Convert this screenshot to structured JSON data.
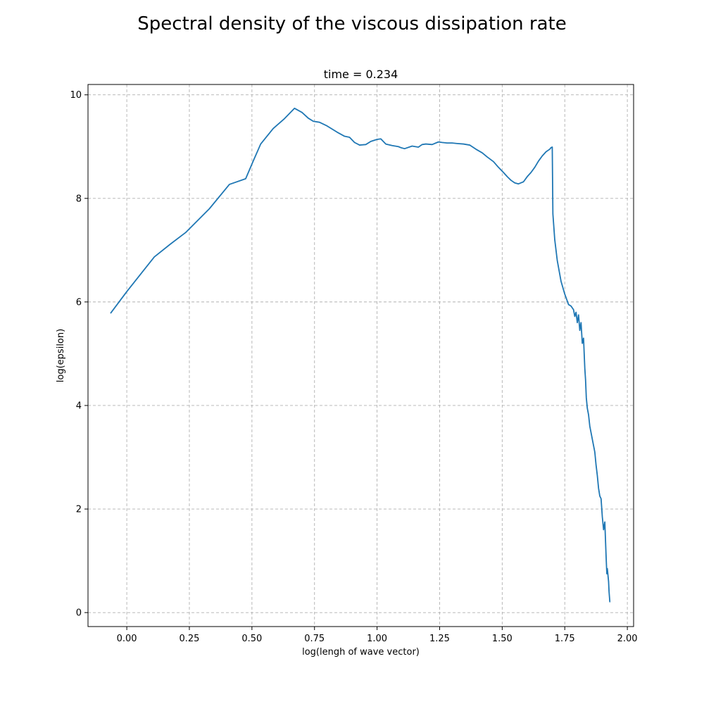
{
  "chart_data": {
    "type": "line",
    "title": "Spectral density of the viscous dissipation rate",
    "subtitle": "time = 0.234",
    "xlabel": "log(lengh of wave vector)",
    "ylabel": "log(epsilon)",
    "xlim": [
      -0.155,
      2.025
    ],
    "ylim": [
      -0.27,
      10.2
    ],
    "xticks": [
      0.0,
      0.25,
      0.5,
      0.75,
      1.0,
      1.25,
      1.5,
      1.75,
      2.0
    ],
    "xtick_labels": [
      "0.00",
      "0.25",
      "0.50",
      "0.75",
      "1.00",
      "1.25",
      "1.50",
      "1.75",
      "2.00"
    ],
    "yticks": [
      0,
      2,
      4,
      6,
      8,
      10
    ],
    "ytick_labels": [
      "0",
      "2",
      "4",
      "6",
      "8",
      "10"
    ],
    "grid": true,
    "line_color": "#1f77b4",
    "series": [
      {
        "x": [
          -0.065,
          0.0,
          0.11,
          0.175,
          0.235,
          0.33,
          0.41,
          0.475,
          0.505,
          0.535,
          0.585,
          0.63,
          0.67,
          0.7,
          0.725,
          0.745,
          0.77,
          0.8,
          0.84,
          0.87,
          0.89,
          0.91,
          0.93,
          0.955,
          0.975,
          1.0,
          1.015,
          1.035,
          1.06,
          1.085,
          1.095,
          1.11,
          1.14,
          1.165,
          1.18,
          1.195,
          1.22,
          1.245,
          1.26,
          1.28,
          1.3,
          1.32,
          1.345,
          1.37,
          1.395,
          1.42,
          1.44,
          1.465,
          1.485,
          1.505,
          1.52,
          1.535,
          1.55,
          1.565,
          1.575,
          1.585,
          1.6,
          1.615,
          1.63,
          1.645,
          1.66,
          1.675,
          1.69,
          1.695,
          1.7,
          1.7025,
          1.71,
          1.72,
          1.735,
          1.75,
          1.765,
          1.775,
          1.785,
          1.79,
          1.795,
          1.8,
          1.805,
          1.81,
          1.815,
          1.82,
          1.825,
          1.83,
          1.833,
          1.836,
          1.84,
          1.845,
          1.85,
          1.86,
          1.87,
          1.875,
          1.88,
          1.885,
          1.89,
          1.895,
          1.9,
          1.905,
          1.91,
          1.915,
          1.918,
          1.92,
          1.925,
          1.927,
          1.93,
          1.932
        ],
        "y": [
          5.78,
          6.2,
          6.87,
          7.12,
          7.34,
          7.8,
          8.27,
          8.38,
          8.72,
          9.05,
          9.35,
          9.54,
          9.74,
          9.66,
          9.55,
          9.49,
          9.47,
          9.4,
          9.28,
          9.2,
          9.18,
          9.08,
          9.03,
          9.04,
          9.1,
          9.14,
          9.15,
          9.05,
          9.02,
          9.0,
          8.98,
          8.96,
          9.01,
          8.99,
          9.04,
          9.05,
          9.04,
          9.09,
          9.08,
          9.07,
          9.07,
          9.06,
          9.05,
          9.03,
          8.95,
          8.88,
          8.8,
          8.71,
          8.6,
          8.5,
          8.42,
          8.35,
          8.3,
          8.28,
          8.3,
          8.32,
          8.42,
          8.5,
          8.6,
          8.72,
          8.82,
          8.9,
          8.95,
          8.98,
          8.99,
          7.7,
          7.2,
          6.8,
          6.4,
          6.15,
          5.95,
          5.92,
          5.85,
          5.72,
          5.8,
          5.6,
          5.75,
          5.45,
          5.6,
          5.2,
          5.3,
          4.72,
          4.5,
          4.15,
          3.95,
          3.82,
          3.6,
          3.35,
          3.1,
          2.85,
          2.65,
          2.4,
          2.25,
          2.2,
          1.85,
          1.6,
          1.75,
          1.1,
          0.75,
          0.85,
          0.6,
          0.4,
          0.21,
          0.21
        ]
      }
    ]
  }
}
